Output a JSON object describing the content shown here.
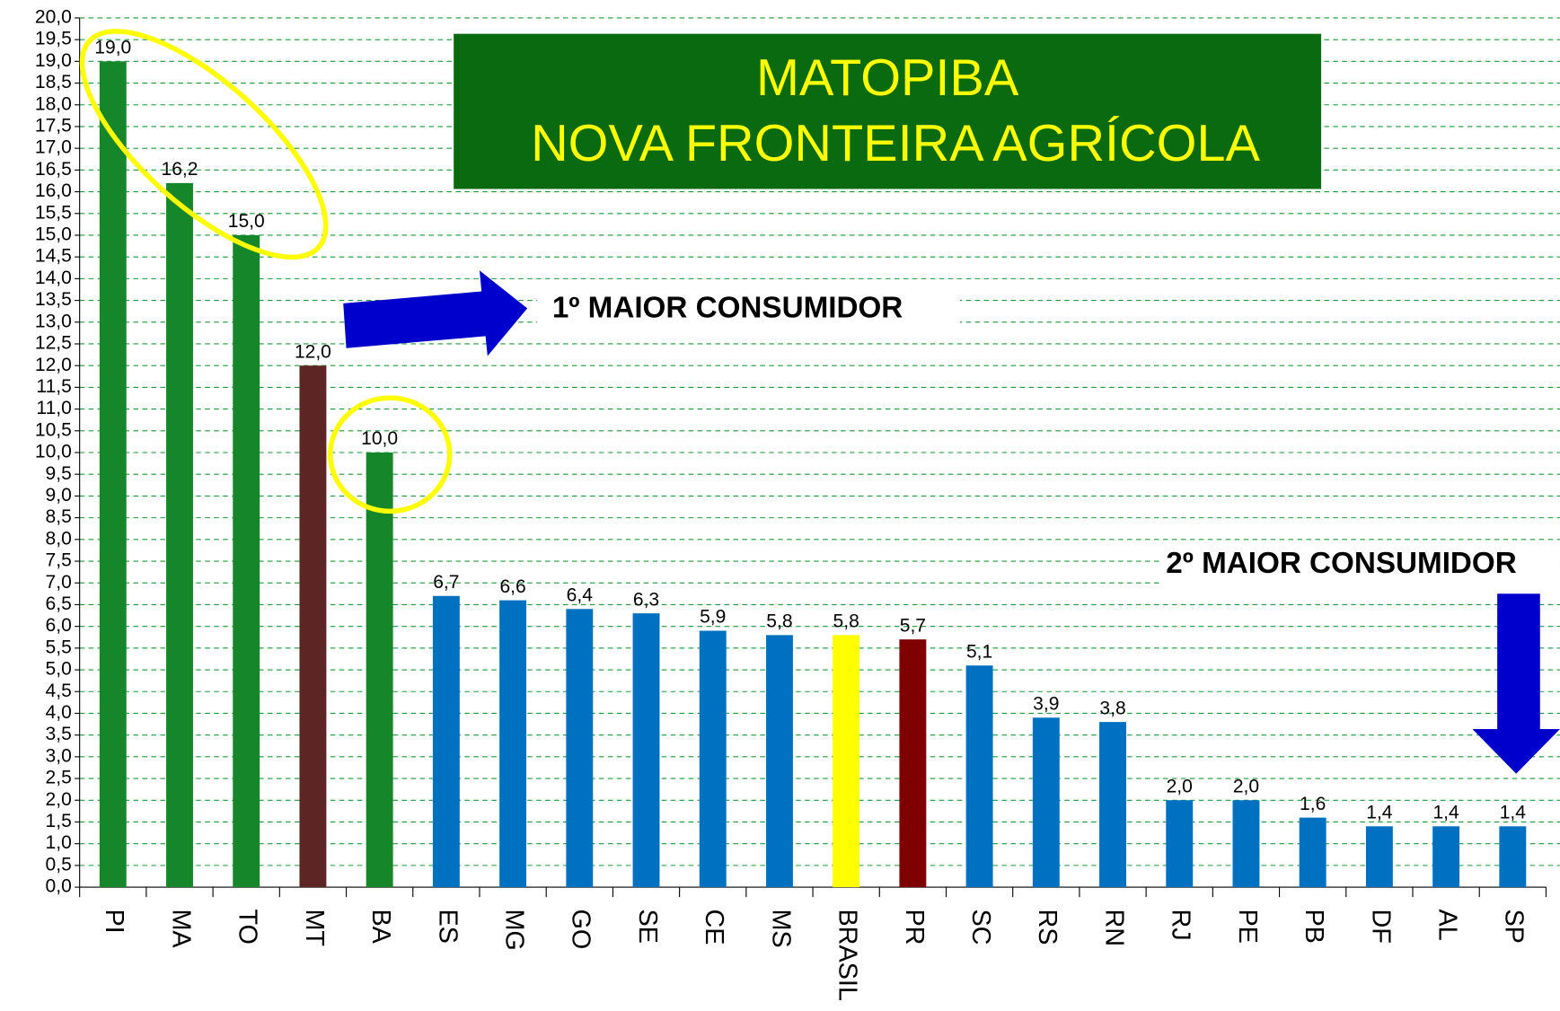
{
  "chart_data": {
    "type": "bar",
    "title": "MATOPIBA",
    "subtitle": "NOVA FRONTEIRA AGRÍCOLA",
    "annotations": [
      "1º MAIOR CONSUMIDOR",
      "2º MAIOR CONSUMIDOR"
    ],
    "categories": [
      "PI",
      "MA",
      "TO",
      "MT",
      "BA",
      "ES",
      "MG",
      "GO",
      "SE",
      "CE",
      "MS",
      "BRASIL",
      "PR",
      "SC",
      "RS",
      "RN",
      "RJ",
      "PE",
      "PB",
      "DF",
      "AL",
      "SP"
    ],
    "values": [
      19.0,
      16.2,
      15.0,
      12.0,
      10.0,
      6.7,
      6.6,
      6.4,
      6.3,
      5.9,
      5.8,
      5.8,
      5.7,
      5.1,
      3.9,
      3.8,
      2.0,
      2.0,
      1.6,
      1.4,
      1.4,
      1.4
    ],
    "value_labels": [
      "19,0",
      "16,2",
      "15,0",
      "12,0",
      "10,0",
      "6,7",
      "6,6",
      "6,4",
      "6,3",
      "5,9",
      "5,8",
      "5,8",
      "5,7",
      "5,1",
      "3,9",
      "3,8",
      "2,0",
      "2,0",
      "1,6",
      "1,4",
      "1,4",
      "1,4"
    ],
    "colors": [
      "#16862a",
      "#16862a",
      "#16862a",
      "#5e2525",
      "#16862a",
      "#0070c0",
      "#0070c0",
      "#0070c0",
      "#0070c0",
      "#0070c0",
      "#0070c0",
      "#ffff00",
      "#7f0000",
      "#0070c0",
      "#0070c0",
      "#0070c0",
      "#0070c0",
      "#0070c0",
      "#0070c0",
      "#0070c0",
      "#0070c0",
      "#0070c0"
    ],
    "ylim": [
      0,
      20
    ],
    "yticks": [
      {
        "value": 0,
        "label": "0,0"
      },
      {
        "value": 0.5,
        "label": "0,5"
      },
      {
        "value": 1,
        "label": "1,0"
      },
      {
        "value": 1.5,
        "label": "1,5"
      },
      {
        "value": 2,
        "label": "2,0"
      },
      {
        "value": 2.5,
        "label": "2,5"
      },
      {
        "value": 3,
        "label": "3,0"
      },
      {
        "value": 3.5,
        "label": "3,5"
      },
      {
        "value": 4,
        "label": "4,0"
      },
      {
        "value": 4.5,
        "label": "4,5"
      },
      {
        "value": 5,
        "label": "5,0"
      },
      {
        "value": 5.5,
        "label": "5,5"
      },
      {
        "value": 6,
        "label": "6,0"
      },
      {
        "value": 6.5,
        "label": "6,5"
      },
      {
        "value": 7,
        "label": "7,0"
      },
      {
        "value": 7.5,
        "label": "7,5"
      },
      {
        "value": 8,
        "label": "8,0"
      },
      {
        "value": 8.5,
        "label": "8,5"
      },
      {
        "value": 9,
        "label": "9,0"
      },
      {
        "value": 9.5,
        "label": "9,5"
      },
      {
        "value": 10,
        "label": "10,0"
      },
      {
        "value": 10.5,
        "label": "10,5"
      },
      {
        "value": 11,
        "label": "11,0"
      },
      {
        "value": 11.5,
        "label": "11,5"
      },
      {
        "value": 12,
        "label": "12,0"
      },
      {
        "value": 12.5,
        "label": "12,5"
      },
      {
        "value": 13,
        "label": "13,0"
      },
      {
        "value": 13.5,
        "label": "13,5"
      },
      {
        "value": 14,
        "label": "14,0"
      },
      {
        "value": 14.5,
        "label": "14,5"
      },
      {
        "value": 15,
        "label": "15,0"
      },
      {
        "value": 15.5,
        "label": "15,5"
      },
      {
        "value": 16,
        "label": "16,0"
      },
      {
        "value": 16.5,
        "label": "16,5"
      },
      {
        "value": 17,
        "label": "17,0"
      },
      {
        "value": 17.5,
        "label": "17,5"
      },
      {
        "value": 18,
        "label": "18,0"
      },
      {
        "value": 18.5,
        "label": "18,5"
      },
      {
        "value": 19,
        "label": "19,0"
      },
      {
        "value": 19.5,
        "label": "19,5"
      },
      {
        "value": 20,
        "label": "20,0"
      }
    ],
    "grid": true
  }
}
